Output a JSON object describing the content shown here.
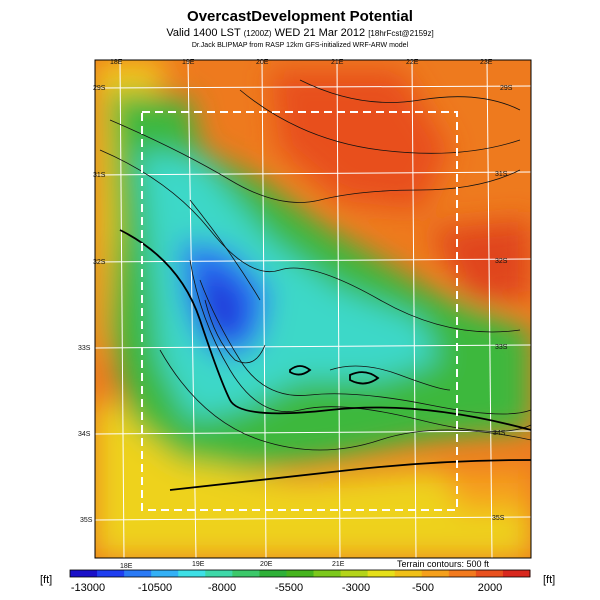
{
  "header": {
    "title": "OvercastDevelopment Potential",
    "valid_label": "Valid 1400 LST",
    "utc_label": "(1200Z)",
    "date_label": "WED 21 Mar 2012",
    "forecast_label": "[18hrFcst@2159z]",
    "credit": "Dr.Jack BLIPMAP from RASP 12km GFS-initialized WRF-ARW model"
  },
  "map": {
    "lon_labels": [
      "18E",
      "19E",
      "20E",
      "21E",
      "22E",
      "23E"
    ],
    "lat_labels_left": [
      "29S",
      "31S",
      "32S",
      "33S",
      "34S",
      "35S"
    ],
    "lat_labels_right": [
      "29S",
      "31S",
      "32S",
      "33S",
      "34S",
      "35S"
    ],
    "lon_labels_bottom": [
      "18E",
      "19E",
      "20E",
      "21E"
    ],
    "terrain_note": "Terrain contours: 500 ft"
  },
  "colorbar": {
    "unit_left": "[ft]",
    "unit_right": "[ft]",
    "ticks": [
      "-13000",
      "-10500",
      "-8000",
      "-5500",
      "-3000",
      "-500",
      "2000"
    ],
    "colors": [
      "#1a10c8",
      "#1f3ef0",
      "#2a7af5",
      "#33b0f5",
      "#3ee0e6",
      "#3ed8a8",
      "#3cc86a",
      "#2fb038",
      "#46b41e",
      "#7cc81c",
      "#b4d41a",
      "#e6e01a",
      "#f0c018",
      "#f5a01c",
      "#f27a1e",
      "#e8501e",
      "#d8281e"
    ]
  }
}
